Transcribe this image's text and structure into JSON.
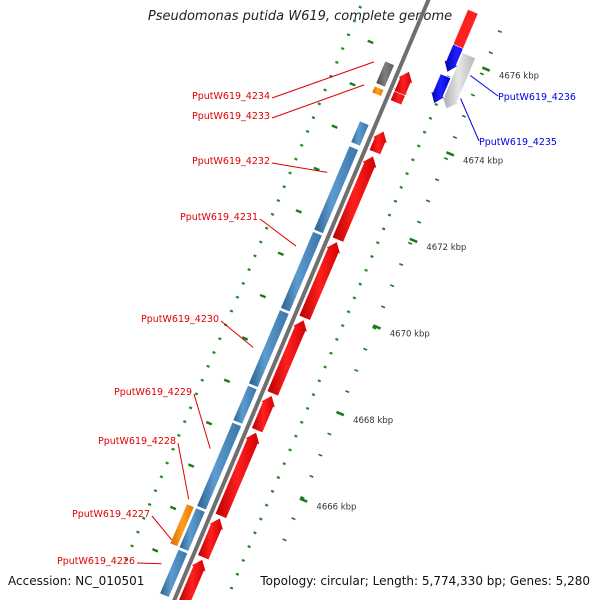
{
  "title": "Pseudomonas putida W619, complete genome",
  "footer": {
    "accession": "Accession: NC_010501",
    "summary": "Topology: circular; Length: 5,774,330 bp; Genes: 5,280"
  },
  "colors": {
    "forward_cds": "#ff0000",
    "reverse_cds": "#0000ff",
    "gene_feature": "#4682b4",
    "other_gene": "#ff8c00",
    "pseudo_gene": "#696969",
    "reverse_gene": "#c0c0c0",
    "backbone": "#808080",
    "tick": "#228b22"
  },
  "ticks": [
    {
      "label": "4676 kbp"
    },
    {
      "label": "4674 kbp"
    },
    {
      "label": "4672 kbp"
    },
    {
      "label": "4670 kbp"
    },
    {
      "label": "4668 kbp"
    },
    {
      "label": "4666 kbp"
    }
  ],
  "genes_left": [
    {
      "label": "PputW619_4234"
    },
    {
      "label": "PputW619_4233"
    },
    {
      "label": "PputW619_4232"
    },
    {
      "label": "PputW619_4231"
    },
    {
      "label": "PputW619_4230"
    },
    {
      "label": "PputW619_4229"
    },
    {
      "label": "PputW619_4228"
    },
    {
      "label": "PputW619_4227"
    },
    {
      "label": "PputW619_4226"
    }
  ],
  "genes_right": [
    {
      "label": "PputW619_4236"
    },
    {
      "label": "PputW619_4235"
    }
  ]
}
